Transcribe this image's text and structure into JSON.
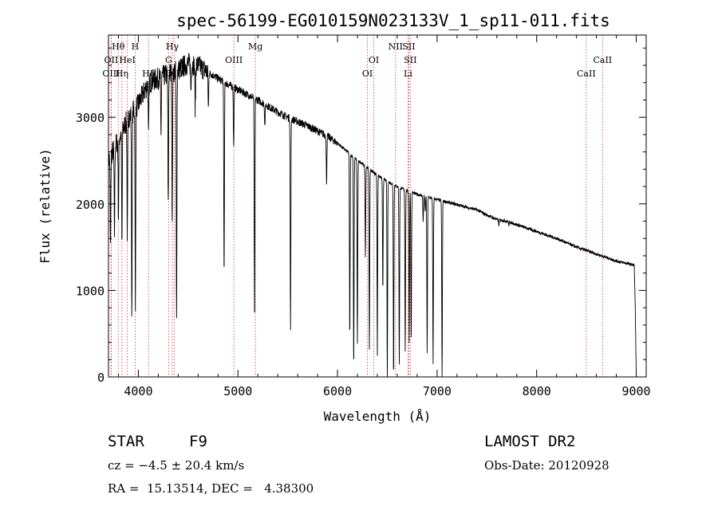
{
  "chart_data": {
    "type": "line",
    "title": "spec-56199-EG010159N023133V_1_sp11-011.fits",
    "xlabel": "Wavelength (Å)",
    "ylabel": "Flux (relative)",
    "xlim": [
      3700,
      9100
    ],
    "ylim": [
      0,
      3950
    ],
    "xticks": [
      4000,
      5000,
      6000,
      7000,
      8000,
      9000
    ],
    "yticks": [
      0,
      1000,
      2000,
      3000
    ],
    "continuum": {
      "x": [
        3700,
        3800,
        3900,
        4000,
        4100,
        4200,
        4300,
        4400,
        4500,
        4600,
        4700,
        4800,
        4900,
        5000,
        5100,
        5200,
        5300,
        5400,
        5500,
        5600,
        5700,
        5800,
        5900,
        6000,
        6100,
        6200,
        6300,
        6400,
        6500,
        6600,
        6700,
        6800,
        6900,
        7000,
        7100,
        7200,
        7300,
        7400,
        7500,
        7600,
        7700,
        7800,
        7900,
        8000,
        8200,
        8400,
        8600,
        8800,
        8950,
        8980,
        8990,
        9000
      ],
      "y": [
        2500,
        2750,
        3000,
        3150,
        3400,
        3450,
        3500,
        3550,
        3620,
        3600,
        3520,
        3450,
        3380,
        3320,
        3260,
        3200,
        3130,
        3060,
        3000,
        2950,
        2900,
        2840,
        2780,
        2700,
        2600,
        2500,
        2420,
        2330,
        2260,
        2200,
        2150,
        2110,
        2080,
        2050,
        2020,
        1990,
        1960,
        1930,
        1870,
        1820,
        1800,
        1760,
        1720,
        1680,
        1600,
        1500,
        1420,
        1340,
        1300,
        1290,
        800,
        0
      ]
    },
    "absorption_lines": [
      {
        "x": 3720,
        "y": 1500
      },
      {
        "x": 3760,
        "y": 1650
      },
      {
        "x": 3800,
        "y": 1850
      },
      {
        "x": 3835,
        "y": 1500
      },
      {
        "x": 3889,
        "y": 1600
      },
      {
        "x": 3934,
        "y": 700
      },
      {
        "x": 3970,
        "y": 700
      },
      {
        "x": 4102,
        "y": 2750
      },
      {
        "x": 4227,
        "y": 2800
      },
      {
        "x": 4300,
        "y": 1950
      },
      {
        "x": 4340,
        "y": 1750
      },
      {
        "x": 4384,
        "y": 1550
      },
      {
        "x": 4383,
        "y": 2600
      },
      {
        "x": 4528,
        "y": 3300
      },
      {
        "x": 4571,
        "y": 3100
      },
      {
        "x": 4703,
        "y": 3100
      },
      {
        "x": 4861,
        "y": 1150
      },
      {
        "x": 4957,
        "y": 2650
      },
      {
        "x": 5167,
        "y": 580
      },
      {
        "x": 5270,
        "y": 2900
      },
      {
        "x": 5528,
        "y": 550
      },
      {
        "x": 5890,
        "y": 2250
      },
      {
        "x": 6123,
        "y": 450
      },
      {
        "x": 6163,
        "y": 100
      },
      {
        "x": 6200,
        "y": 380
      },
      {
        "x": 6280,
        "y": 1400
      },
      {
        "x": 6320,
        "y": 300
      },
      {
        "x": 6400,
        "y": 250
      },
      {
        "x": 6455,
        "y": 1000
      },
      {
        "x": 6500,
        "y": 0
      },
      {
        "x": 6563,
        "y": 0
      },
      {
        "x": 6620,
        "y": 150
      },
      {
        "x": 6680,
        "y": 300
      },
      {
        "x": 6720,
        "y": 400
      },
      {
        "x": 6740,
        "y": 450
      },
      {
        "x": 6860,
        "y": 1800
      },
      {
        "x": 6880,
        "y": 1900
      },
      {
        "x": 6900,
        "y": 280
      },
      {
        "x": 6960,
        "y": 150
      },
      {
        "x": 7050,
        "y": 0
      },
      {
        "x": 7590,
        "y": 1950
      },
      {
        "x": 7620,
        "y": 1750
      },
      {
        "x": 7720,
        "y": 1750
      },
      {
        "x": 8190,
        "y": 1620
      }
    ],
    "line_markers": [
      {
        "label": "Hθ",
        "x": 3798,
        "row": 1
      },
      {
        "label": "H",
        "x": 3968,
        "row": 1
      },
      {
        "label": "Hγ",
        "x": 4341,
        "row": 1
      },
      {
        "label": "Mg",
        "x": 5175,
        "row": 1
      },
      {
        "label": "NII",
        "x": 6583,
        "row": 1
      },
      {
        "label": "SII",
        "x": 6716,
        "row": 1
      },
      {
        "label": "OII",
        "x": 3727,
        "row": 2
      },
      {
        "label": "HeI",
        "x": 3889,
        "row": 2
      },
      {
        "label": "G",
        "x": 4304,
        "row": 2
      },
      {
        "label": "OIII",
        "x": 4959,
        "row": 2
      },
      {
        "label": "OI",
        "x": 6364,
        "row": 2
      },
      {
        "label": "SII",
        "x": 6731,
        "row": 2
      },
      {
        "label": "CaII",
        "x": 8662,
        "row": 2
      },
      {
        "label": "OIII",
        "x": 3727,
        "row": 3
      },
      {
        "label": "Hη",
        "x": 3835,
        "row": 3
      },
      {
        "label": "Hδ",
        "x": 4102,
        "row": 3
      },
      {
        "label": "OIII",
        "x": 4363,
        "row": 3
      },
      {
        "label": "OI",
        "x": 6300,
        "row": 3
      },
      {
        "label": "Li",
        "x": 6708,
        "row": 3
      },
      {
        "label": "CaII",
        "x": 8498,
        "row": 3
      }
    ]
  },
  "info": {
    "object_class": "STAR",
    "subclass": "F9",
    "survey": "LAMOST DR2",
    "cz": "cz = −4.5 ± 20.4 km/s",
    "obs_date": "Obs-Date: 20120928",
    "coords": "RA =  15.13514, DEC =   4.38300"
  },
  "colors": {
    "spectrum": "#000000",
    "markers": "#cc0000",
    "frame": "#000000"
  }
}
